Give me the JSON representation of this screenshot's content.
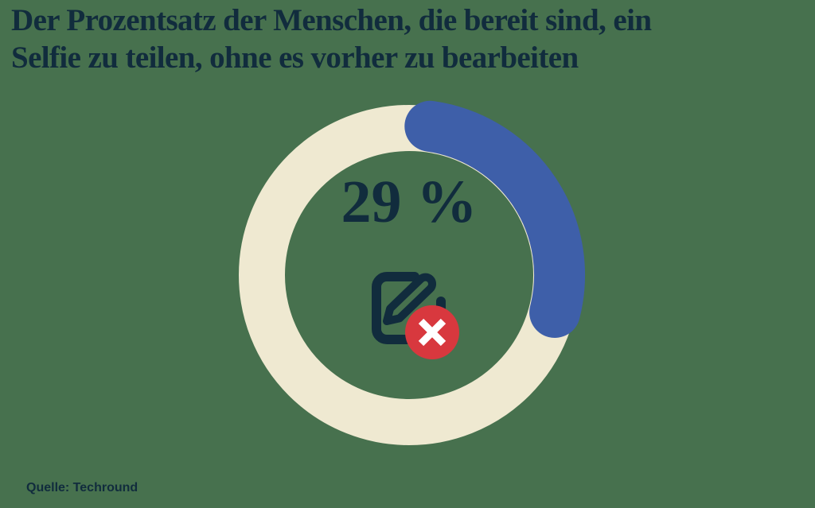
{
  "chart_data": {
    "type": "donut",
    "title": "Der Prozentsatz der Menschen, die bereit sind, ein Selfie zu teilen, ohne es vorher zu bearbeiten",
    "percent": 29,
    "values": [
      29,
      71
    ],
    "center_label": "29 %",
    "source": "Quelle: Techround",
    "legend": "none",
    "start_angle_deg": 0,
    "direction": "clockwise"
  },
  "title": {
    "line1": "Der Prozentsatz der Menschen, die bereit sind, ein",
    "line2": "Selfie zu teilen, ohne es vorher zu bearbeiten"
  },
  "donut": {
    "percent_label": "29 %"
  },
  "footer": {
    "source_label": "Quelle: Techround"
  },
  "colors": {
    "background": "#47714E",
    "navy": "#112C3D",
    "track_cream": "#EFE9D1",
    "progress_blue": "#3E5FA9",
    "badge_red": "#D8383E",
    "badge_cross": "#FFFFFF"
  },
  "icons": {
    "center": "edit-pencil-square-with-x-badge"
  }
}
